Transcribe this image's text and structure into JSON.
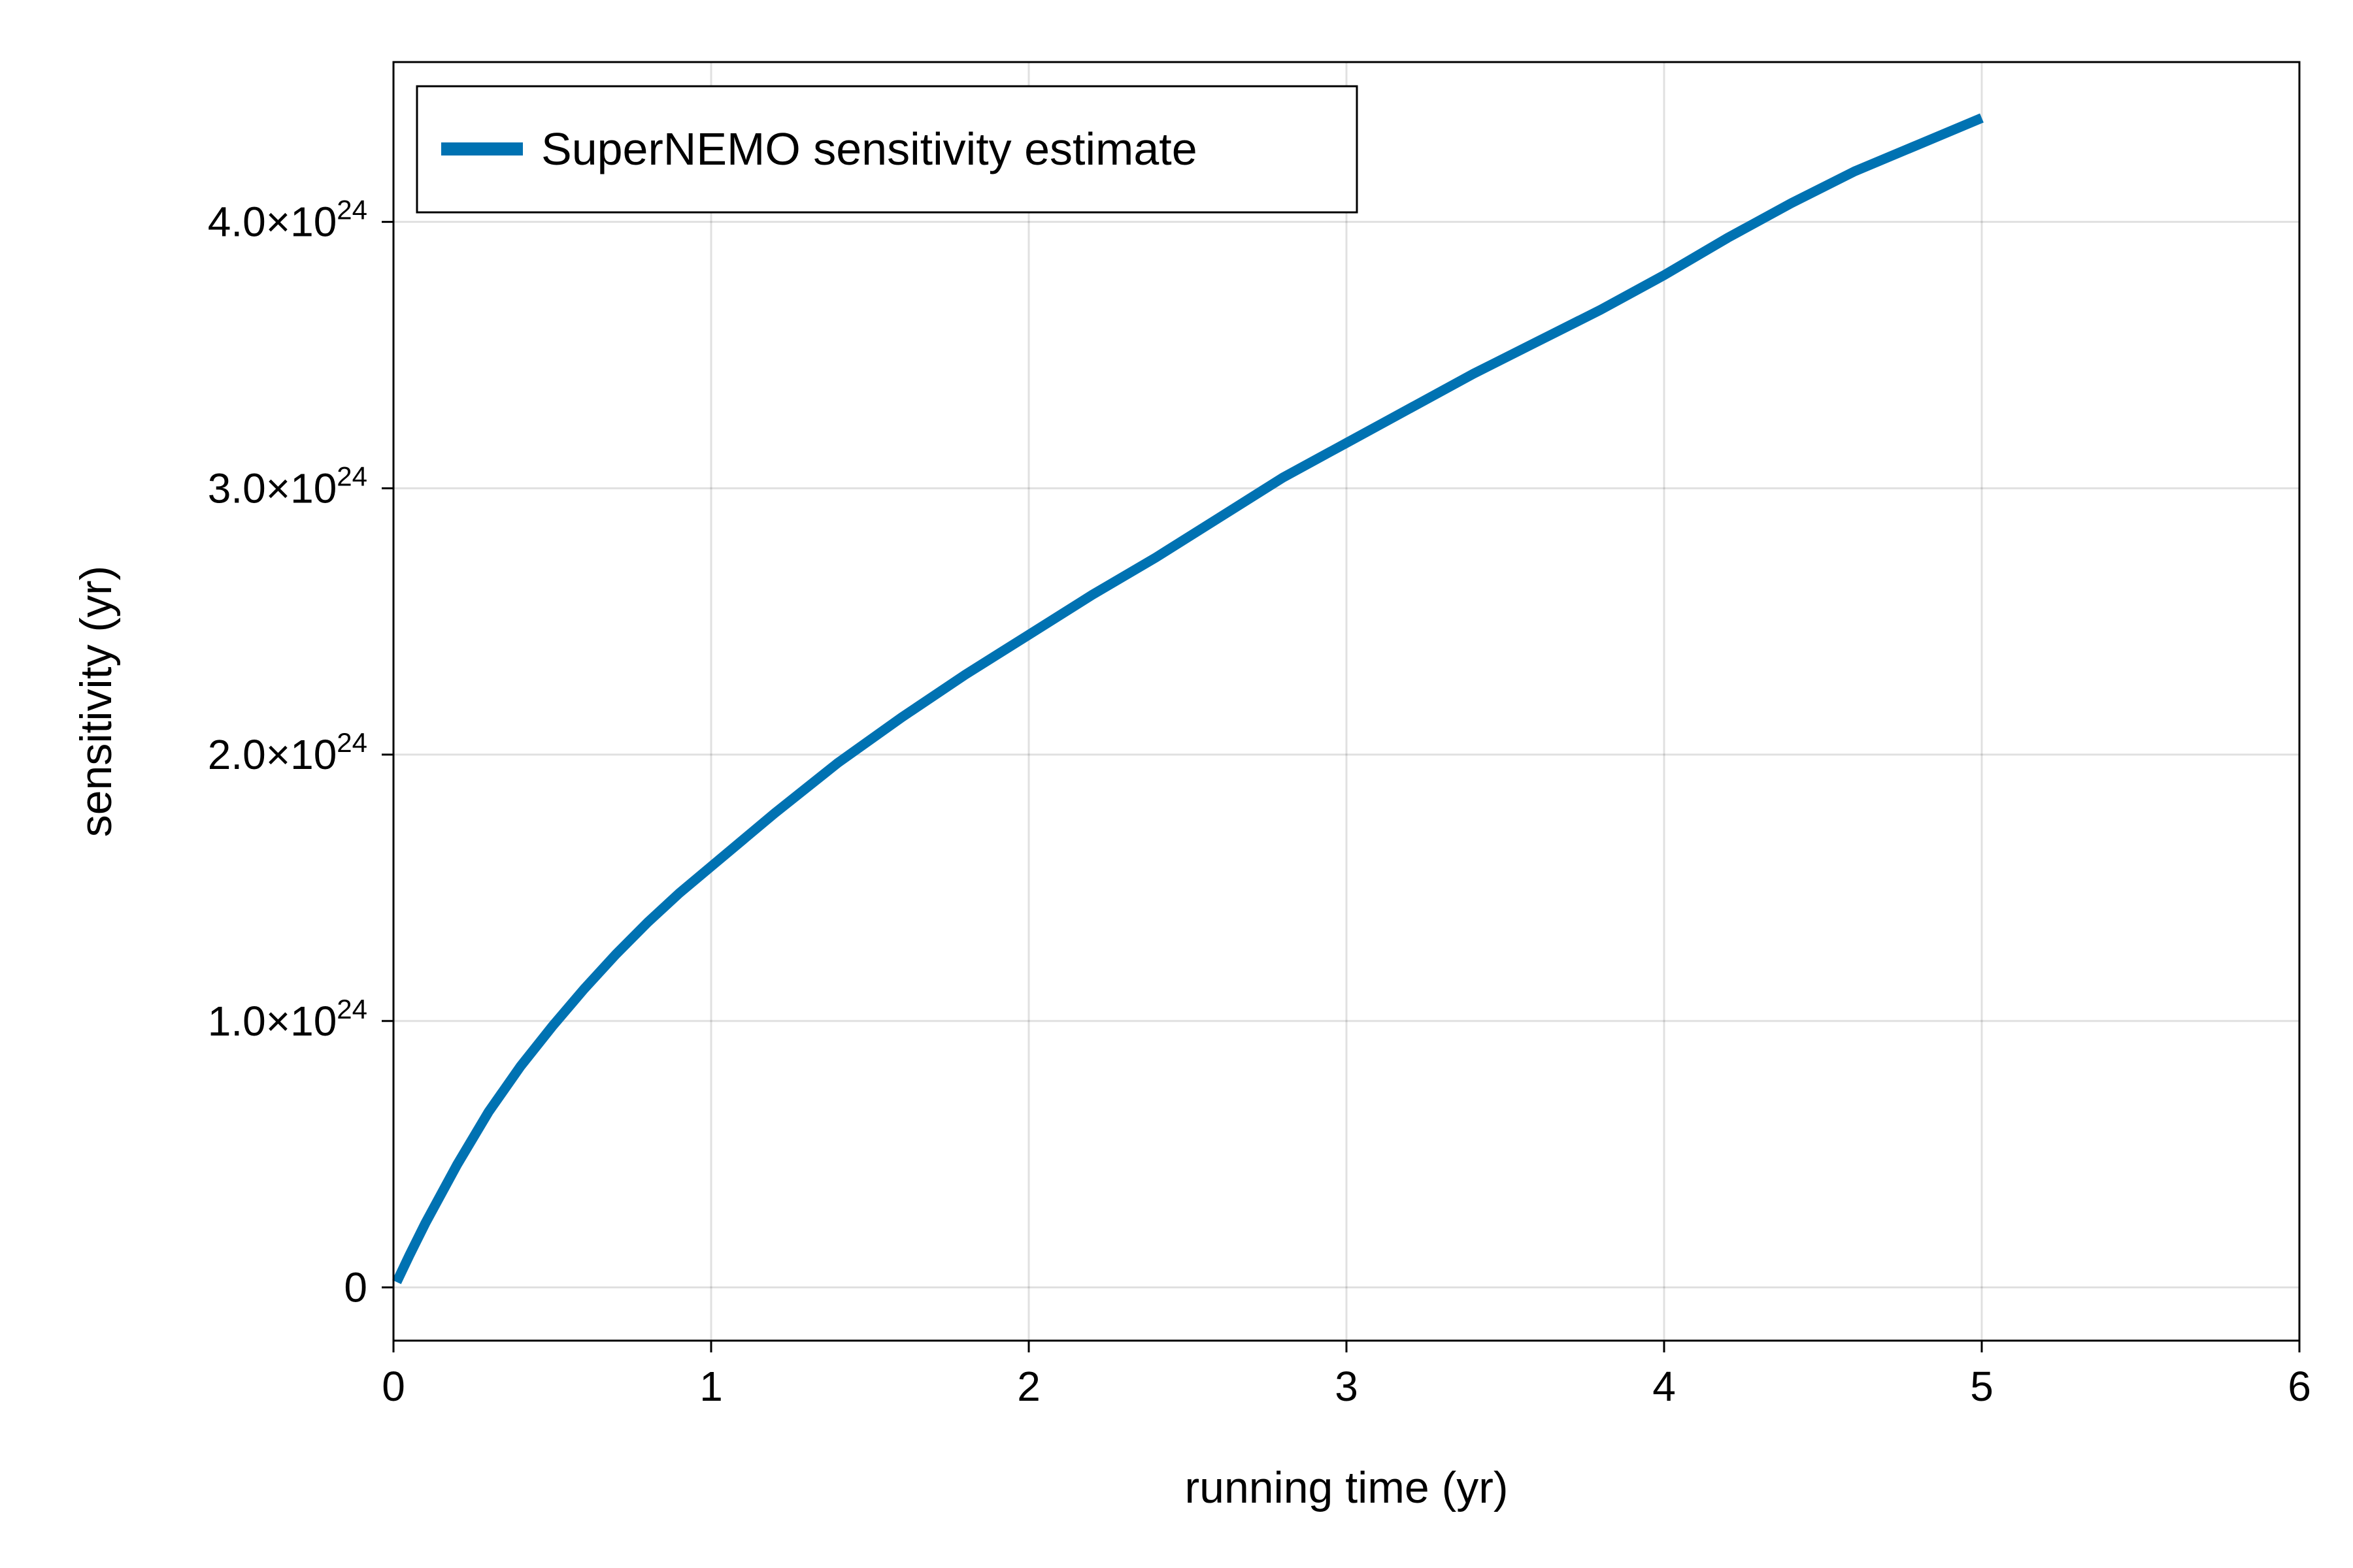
{
  "chart_data": {
    "type": "line",
    "title": "",
    "xlabel": "running time (yr)",
    "ylabel": "sensitivity (yr)",
    "xlim": [
      0,
      6
    ],
    "ylim": [
      -2e+23,
      4.6e+24
    ],
    "grid": true,
    "legend_position": "top-left",
    "x_ticks": [
      {
        "value": 0,
        "label": "0"
      },
      {
        "value": 1,
        "label": "1"
      },
      {
        "value": 2,
        "label": "2"
      },
      {
        "value": 3,
        "label": "3"
      },
      {
        "value": 4,
        "label": "4"
      },
      {
        "value": 5,
        "label": "5"
      },
      {
        "value": 6,
        "label": "6"
      }
    ],
    "y_ticks": [
      {
        "value": 0,
        "label": "0",
        "exp": ""
      },
      {
        "value": 1e+24,
        "label": "1.0×10",
        "exp": "24"
      },
      {
        "value": 2e+24,
        "label": "2.0×10",
        "exp": "24"
      },
      {
        "value": 3e+24,
        "label": "3.0×10",
        "exp": "24"
      },
      {
        "value": 4e+24,
        "label": "4.0×10",
        "exp": "24"
      }
    ],
    "series": [
      {
        "name": "SuperNEMO sensitivity estimate",
        "color": "#0072b2",
        "x": [
          0.01,
          0.05,
          0.1,
          0.2,
          0.3,
          0.4,
          0.5,
          0.6,
          0.7,
          0.8,
          0.9,
          1.0,
          1.2,
          1.4,
          1.6,
          1.8,
          2.0,
          2.2,
          2.4,
          2.6,
          2.8,
          3.0,
          3.2,
          3.4,
          3.6,
          3.8,
          4.0,
          4.2,
          4.4,
          4.6,
          4.8,
          5.0
        ],
        "y": [
          2e+22,
          1.2e+23,
          2.4e+23,
          4.6e+23,
          6.6e+23,
          8.3e+23,
          9.8e+23,
          1.12e+24,
          1.25e+24,
          1.37e+24,
          1.48e+24,
          1.58e+24,
          1.78e+24,
          1.97e+24,
          2.14e+24,
          2.3e+24,
          2.45e+24,
          2.6e+24,
          2.74e+24,
          2.89e+24,
          3.04e+24,
          3.17e+24,
          3.3e+24,
          3.43e+24,
          3.55e+24,
          3.67e+24,
          3.8e+24,
          3.94e+24,
          4.07e+24,
          4.19e+24,
          4.29e+24,
          4.39e+24
        ]
      }
    ]
  }
}
